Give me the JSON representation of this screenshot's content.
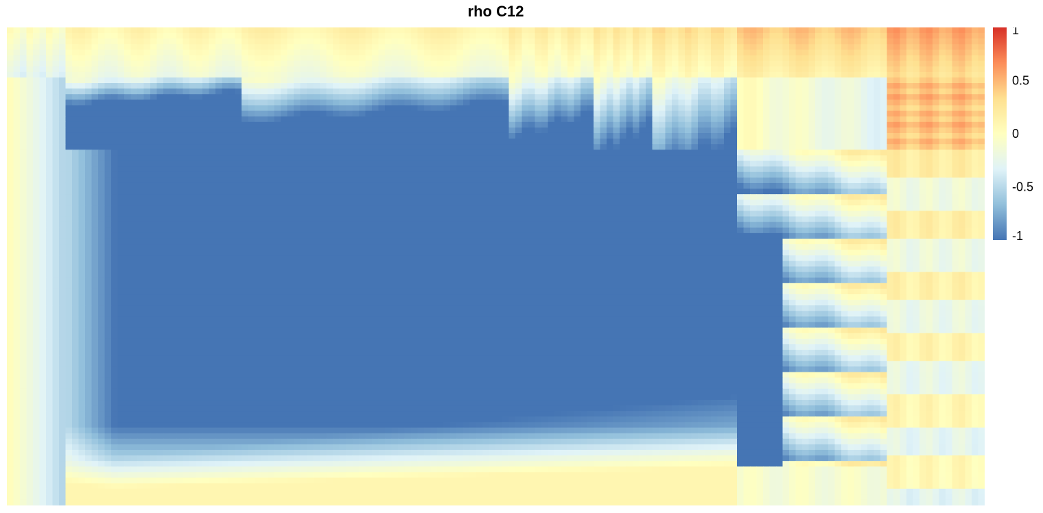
{
  "chart_data": {
    "type": "heatmap",
    "title": "rho C12",
    "xlabel": "",
    "ylabel": "",
    "value_range": [
      -1,
      1
    ],
    "colorbar": {
      "ticks": [
        1,
        0.5,
        0,
        -0.5,
        -1
      ],
      "tick_labels": [
        "1",
        "0.5",
        "0",
        "-0.5",
        "-1"
      ],
      "colors": [
        "#4575B4",
        "#91BFDB",
        "#E0F3F8",
        "#FFFFBF",
        "#FEE090",
        "#FC8D59",
        "#D73027"
      ]
    },
    "grid": false,
    "legend_position": "right"
  }
}
